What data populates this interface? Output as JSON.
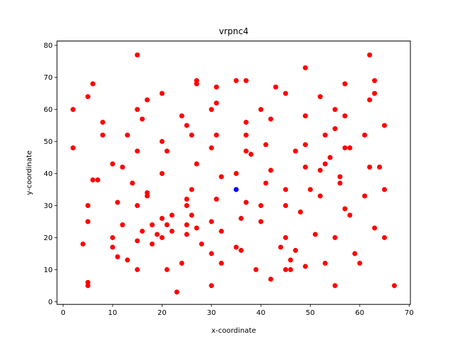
{
  "chart_data": {
    "type": "scatter",
    "title": "vrpnc4",
    "xlabel": "x-coordinate",
    "ylabel": "y-coordinate",
    "xlim": [
      -1.25,
      70.25
    ],
    "ylim": [
      -0.85,
      81.35
    ],
    "xticks": [
      0,
      10,
      20,
      30,
      40,
      50,
      60,
      70
    ],
    "yticks": [
      0,
      10,
      20,
      30,
      40,
      50,
      60,
      70,
      80
    ],
    "grid": false,
    "series": [
      {
        "color": "#ff0000",
        "points": [
          [
            2,
            60
          ],
          [
            2,
            48
          ],
          [
            4,
            18
          ],
          [
            5,
            64
          ],
          [
            5,
            30
          ],
          [
            5,
            25
          ],
          [
            5,
            6
          ],
          [
            5,
            5
          ],
          [
            6,
            68
          ],
          [
            6,
            38
          ],
          [
            7,
            38
          ],
          [
            8,
            56
          ],
          [
            8,
            52
          ],
          [
            10,
            43
          ],
          [
            10,
            20
          ],
          [
            10,
            17
          ],
          [
            11,
            31
          ],
          [
            11,
            14
          ],
          [
            12,
            42
          ],
          [
            12,
            24
          ],
          [
            13,
            52
          ],
          [
            13,
            13
          ],
          [
            14,
            37
          ],
          [
            15,
            77
          ],
          [
            15,
            60
          ],
          [
            15,
            47
          ],
          [
            15,
            30
          ],
          [
            15,
            19
          ],
          [
            15,
            10
          ],
          [
            16,
            57
          ],
          [
            16,
            22
          ],
          [
            17,
            63
          ],
          [
            17,
            34
          ],
          [
            17,
            33
          ],
          [
            18,
            24
          ],
          [
            18,
            18
          ],
          [
            19,
            21
          ],
          [
            20,
            65
          ],
          [
            20,
            50
          ],
          [
            20,
            40
          ],
          [
            20,
            26
          ],
          [
            20,
            20
          ],
          [
            21,
            47
          ],
          [
            21,
            24
          ],
          [
            21,
            10
          ],
          [
            22,
            27
          ],
          [
            22,
            22
          ],
          [
            23,
            3
          ],
          [
            24,
            58
          ],
          [
            24,
            12
          ],
          [
            25,
            55
          ],
          [
            25,
            32
          ],
          [
            25,
            30
          ],
          [
            25,
            24
          ],
          [
            25,
            21
          ],
          [
            26,
            52
          ],
          [
            26,
            35
          ],
          [
            26,
            27
          ],
          [
            27,
            69
          ],
          [
            27,
            68
          ],
          [
            27,
            43
          ],
          [
            27,
            23
          ],
          [
            28,
            18
          ],
          [
            30,
            60
          ],
          [
            30,
            48
          ],
          [
            30,
            25
          ],
          [
            30,
            15
          ],
          [
            30,
            5
          ],
          [
            31,
            67
          ],
          [
            31,
            62
          ],
          [
            31,
            52
          ],
          [
            31,
            32
          ],
          [
            32,
            39
          ],
          [
            32,
            22
          ],
          [
            32,
            12
          ],
          [
            35,
            69
          ],
          [
            35,
            40
          ],
          [
            35,
            17
          ],
          [
            36,
            26
          ],
          [
            36,
            16
          ],
          [
            37,
            69
          ],
          [
            37,
            56
          ],
          [
            37,
            52
          ],
          [
            37,
            47
          ],
          [
            37,
            31
          ],
          [
            38,
            46
          ],
          [
            39,
            10
          ],
          [
            40,
            60
          ],
          [
            40,
            30
          ],
          [
            40,
            25
          ],
          [
            41,
            49
          ],
          [
            41,
            37
          ],
          [
            42,
            57
          ],
          [
            42,
            41
          ],
          [
            42,
            7
          ],
          [
            43,
            67
          ],
          [
            44,
            17
          ],
          [
            45,
            65
          ],
          [
            45,
            35
          ],
          [
            45,
            30
          ],
          [
            45,
            20
          ],
          [
            45,
            10
          ],
          [
            46,
            13
          ],
          [
            46,
            10
          ],
          [
            47,
            47
          ],
          [
            47,
            16
          ],
          [
            48,
            28
          ],
          [
            49,
            73
          ],
          [
            49,
            58
          ],
          [
            49,
            49
          ],
          [
            49,
            42
          ],
          [
            49,
            11
          ],
          [
            50,
            35
          ],
          [
            51,
            21
          ],
          [
            52,
            64
          ],
          [
            52,
            41
          ],
          [
            52,
            33
          ],
          [
            53,
            52
          ],
          [
            53,
            43
          ],
          [
            53,
            12
          ],
          [
            54,
            45
          ],
          [
            55,
            60
          ],
          [
            55,
            54
          ],
          [
            55,
            20
          ],
          [
            55,
            5
          ],
          [
            56,
            39
          ],
          [
            56,
            37
          ],
          [
            57,
            68
          ],
          [
            57,
            58
          ],
          [
            57,
            48
          ],
          [
            57,
            29
          ],
          [
            58,
            48
          ],
          [
            58,
            27
          ],
          [
            59,
            15
          ],
          [
            60,
            12
          ],
          [
            61,
            52
          ],
          [
            61,
            33
          ],
          [
            62,
            77
          ],
          [
            62,
            63
          ],
          [
            62,
            42
          ],
          [
            63,
            69
          ],
          [
            63,
            65
          ],
          [
            63,
            23
          ],
          [
            64,
            42
          ],
          [
            65,
            55
          ],
          [
            65,
            35
          ],
          [
            65,
            20
          ],
          [
            67,
            5
          ]
        ]
      },
      {
        "color": "#0000ff",
        "points": [
          [
            35,
            35
          ]
        ]
      }
    ]
  }
}
